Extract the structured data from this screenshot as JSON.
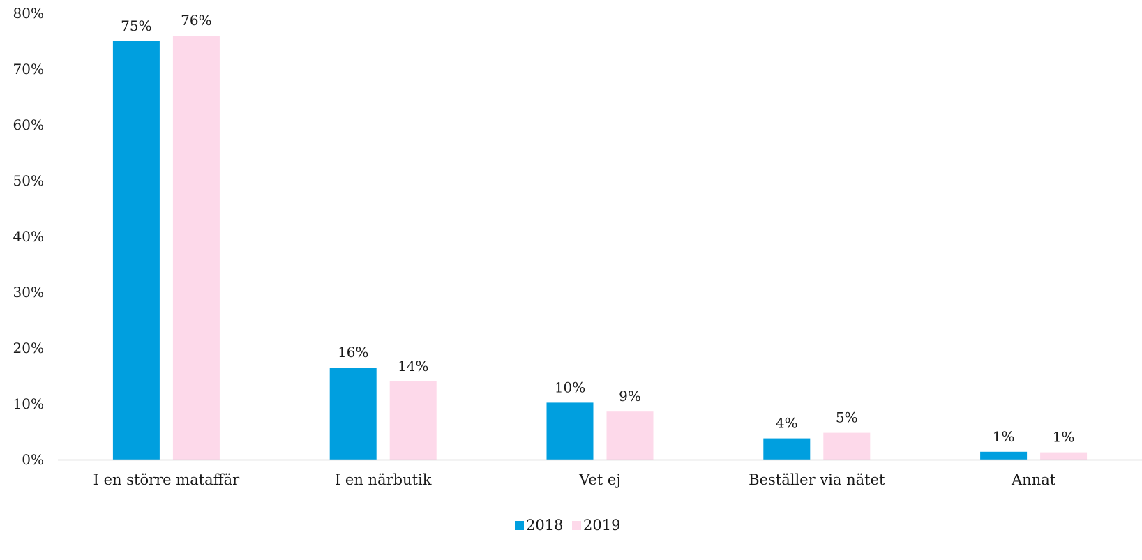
{
  "chart_data": {
    "type": "bar",
    "title": "",
    "xlabel": "",
    "ylabel": "",
    "categories": [
      "I en större mataffär",
      "I en närbutik",
      "Vet ej",
      "Beställer via nätet",
      "Annat"
    ],
    "series": [
      {
        "name": "2018",
        "color": "#009fdf",
        "values": [
          75,
          16.5,
          10.2,
          3.8,
          1.4
        ],
        "labels": [
          "75%",
          "16%",
          "10%",
          "4%",
          "1%"
        ]
      },
      {
        "name": "2019",
        "color": "#fdd9ea",
        "values": [
          76,
          14,
          8.6,
          4.8,
          1.3
        ],
        "labels": [
          "76%",
          "14%",
          "9%",
          "5%",
          "1%"
        ]
      }
    ],
    "ylim": [
      0,
      80
    ],
    "yticks": [
      "0%",
      "10%",
      "20%",
      "30%",
      "40%",
      "50%",
      "60%",
      "70%",
      "80%"
    ],
    "grid": false,
    "legend": "bottom-center"
  }
}
